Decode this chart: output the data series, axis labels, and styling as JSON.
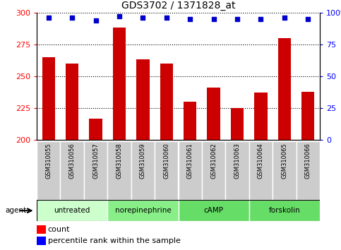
{
  "title": "GDS3702 / 1371828_at",
  "samples": [
    "GSM310055",
    "GSM310056",
    "GSM310057",
    "GSM310058",
    "GSM310059",
    "GSM310060",
    "GSM310061",
    "GSM310062",
    "GSM310063",
    "GSM310064",
    "GSM310065",
    "GSM310066"
  ],
  "bar_values": [
    265,
    260,
    217,
    288,
    263,
    260,
    230,
    241,
    225,
    237,
    280,
    238
  ],
  "percentile_values": [
    96,
    96,
    94,
    97,
    96,
    96,
    95,
    95,
    95,
    95,
    96,
    95
  ],
  "bar_color": "#cc0000",
  "dot_color": "#0000cc",
  "ylim_left": [
    200,
    300
  ],
  "ylim_right": [
    0,
    100
  ],
  "yticks_left": [
    200,
    225,
    250,
    275,
    300
  ],
  "yticks_right": [
    0,
    25,
    50,
    75,
    100
  ],
  "groups": [
    {
      "label": "untreated",
      "start": 0,
      "end": 3,
      "color": "#ccffcc"
    },
    {
      "label": "norepinephrine",
      "start": 3,
      "end": 6,
      "color": "#88ee88"
    },
    {
      "label": "cAMP",
      "start": 6,
      "end": 9,
      "color": "#66dd66"
    },
    {
      "label": "forskolin",
      "start": 9,
      "end": 12,
      "color": "#66dd66"
    }
  ],
  "agent_label": "agent",
  "legend_count_label": "count",
  "legend_percentile_label": "percentile rank within the sample",
  "sample_bg_color": "#cccccc",
  "sample_border_color": "#ffffff",
  "plot_bg_color": "#ffffff"
}
